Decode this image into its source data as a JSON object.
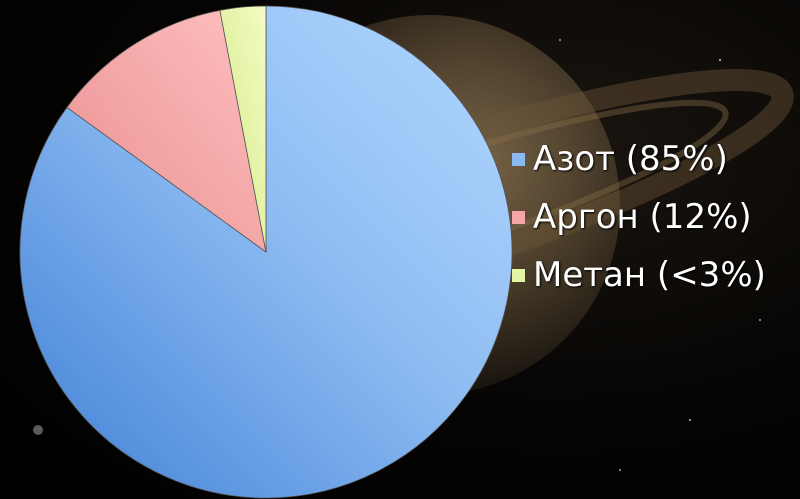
{
  "chart_data": {
    "type": "pie",
    "title": "",
    "slices": [
      {
        "label": "Азот (85%)",
        "value": 85,
        "color": "#8ab8f0"
      },
      {
        "label": "Аргон (12%)",
        "value": 12,
        "color": "#f4a6a6"
      },
      {
        "label": "Метан (<3%)",
        "value": 3,
        "color": "#e4f5a3"
      }
    ],
    "start_angle_deg": 0,
    "direction": "clockwise",
    "legend": "right",
    "background": "photo of Saturn with rings on starry black space"
  }
}
